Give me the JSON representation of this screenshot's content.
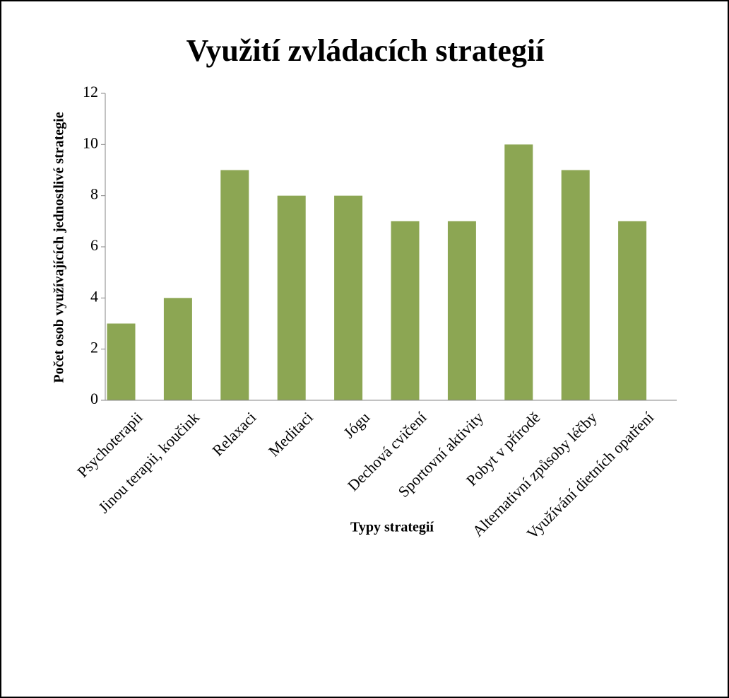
{
  "chart_data": {
    "type": "bar",
    "title": "Využití zvládacích strategií",
    "x_label": "Typy strategií",
    "y_label": "Počet osob využívajících jednostlivé strategie",
    "categories": [
      "Psychoterapii",
      "Jinou terapii, koučink",
      "Relaxaci",
      "Meditaci",
      "Jógu",
      "Dechová cvičení",
      "Sportovní aktivity",
      "Pobyt v přírodě",
      "Alternativní způsoby léčby",
      "Využívání dietních opatření"
    ],
    "values": [
      3,
      4,
      9,
      8,
      8,
      7,
      7,
      10,
      9,
      7
    ],
    "color": "#8ca653",
    "ylim": [
      0,
      12
    ],
    "yticks": [
      0,
      2,
      4,
      6,
      8,
      10,
      12
    ],
    "grid": false
  }
}
